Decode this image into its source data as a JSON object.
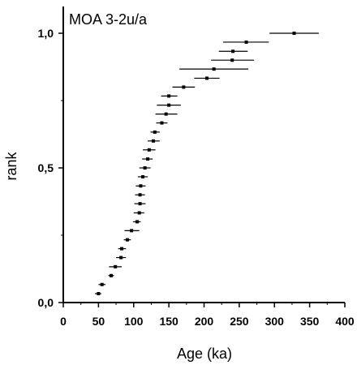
{
  "chart_data": {
    "type": "scatter",
    "title": "MOA 3-2u/a",
    "xlabel": "Age (ka)",
    "ylabel": "rank",
    "xlim": [
      0,
      400
    ],
    "ylim": [
      0,
      1.1
    ],
    "x_ticks": [
      0,
      50,
      100,
      150,
      200,
      250,
      300,
      350,
      400
    ],
    "y_ticks": [
      0.0,
      0.5,
      1.0
    ],
    "x_tick_labels": [
      "0",
      "50",
      "100",
      "150",
      "200",
      "250",
      "300",
      "350",
      "400"
    ],
    "y_tick_labels": [
      "0,0",
      "0,5",
      "1,0"
    ],
    "grid": false,
    "legend": "none",
    "colors": {
      "marker": "#000000",
      "error_bar": "#000000",
      "axis": "#000000"
    },
    "series": [
      {
        "points": [
          {
            "x": 50,
            "y": 0.033,
            "xerr_low": 45,
            "xerr_high": 54
          },
          {
            "x": 55,
            "y": 0.067,
            "xerr_low": 50,
            "xerr_high": 60
          },
          {
            "x": 68,
            "y": 0.1,
            "xerr_low": 64,
            "xerr_high": 72
          },
          {
            "x": 74,
            "y": 0.133,
            "xerr_low": 65,
            "xerr_high": 83
          },
          {
            "x": 82,
            "y": 0.167,
            "xerr_low": 75,
            "xerr_high": 89
          },
          {
            "x": 83,
            "y": 0.2,
            "xerr_low": 78,
            "xerr_high": 89
          },
          {
            "x": 91,
            "y": 0.233,
            "xerr_low": 86,
            "xerr_high": 96
          },
          {
            "x": 97,
            "y": 0.267,
            "xerr_low": 87,
            "xerr_high": 108
          },
          {
            "x": 105,
            "y": 0.3,
            "xerr_low": 99,
            "xerr_high": 110
          },
          {
            "x": 108,
            "y": 0.333,
            "xerr_low": 100,
            "xerr_high": 115
          },
          {
            "x": 109,
            "y": 0.367,
            "xerr_low": 101,
            "xerr_high": 117
          },
          {
            "x": 109,
            "y": 0.4,
            "xerr_low": 102,
            "xerr_high": 116
          },
          {
            "x": 110,
            "y": 0.433,
            "xerr_low": 103,
            "xerr_high": 117
          },
          {
            "x": 113,
            "y": 0.467,
            "xerr_low": 106,
            "xerr_high": 120
          },
          {
            "x": 116,
            "y": 0.5,
            "xerr_low": 108,
            "xerr_high": 124
          },
          {
            "x": 120,
            "y": 0.533,
            "xerr_low": 112,
            "xerr_high": 127
          },
          {
            "x": 122,
            "y": 0.567,
            "xerr_low": 113,
            "xerr_high": 131
          },
          {
            "x": 128,
            "y": 0.6,
            "xerr_low": 120,
            "xerr_high": 137
          },
          {
            "x": 130,
            "y": 0.633,
            "xerr_low": 124,
            "xerr_high": 137
          },
          {
            "x": 140,
            "y": 0.667,
            "xerr_low": 132,
            "xerr_high": 148
          },
          {
            "x": 146,
            "y": 0.7,
            "xerr_low": 131,
            "xerr_high": 162
          },
          {
            "x": 150,
            "y": 0.733,
            "xerr_low": 133,
            "xerr_high": 167
          },
          {
            "x": 150,
            "y": 0.767,
            "xerr_low": 139,
            "xerr_high": 162
          },
          {
            "x": 171,
            "y": 0.8,
            "xerr_low": 155,
            "xerr_high": 187
          },
          {
            "x": 204,
            "y": 0.833,
            "xerr_low": 186,
            "xerr_high": 222
          },
          {
            "x": 214,
            "y": 0.867,
            "xerr_low": 165,
            "xerr_high": 263
          },
          {
            "x": 240,
            "y": 0.9,
            "xerr_low": 210,
            "xerr_high": 271
          },
          {
            "x": 241,
            "y": 0.933,
            "xerr_low": 221,
            "xerr_high": 262
          },
          {
            "x": 260,
            "y": 0.967,
            "xerr_low": 227,
            "xerr_high": 292
          },
          {
            "x": 328,
            "y": 1.0,
            "xerr_low": 293,
            "xerr_high": 363
          }
        ]
      }
    ]
  }
}
